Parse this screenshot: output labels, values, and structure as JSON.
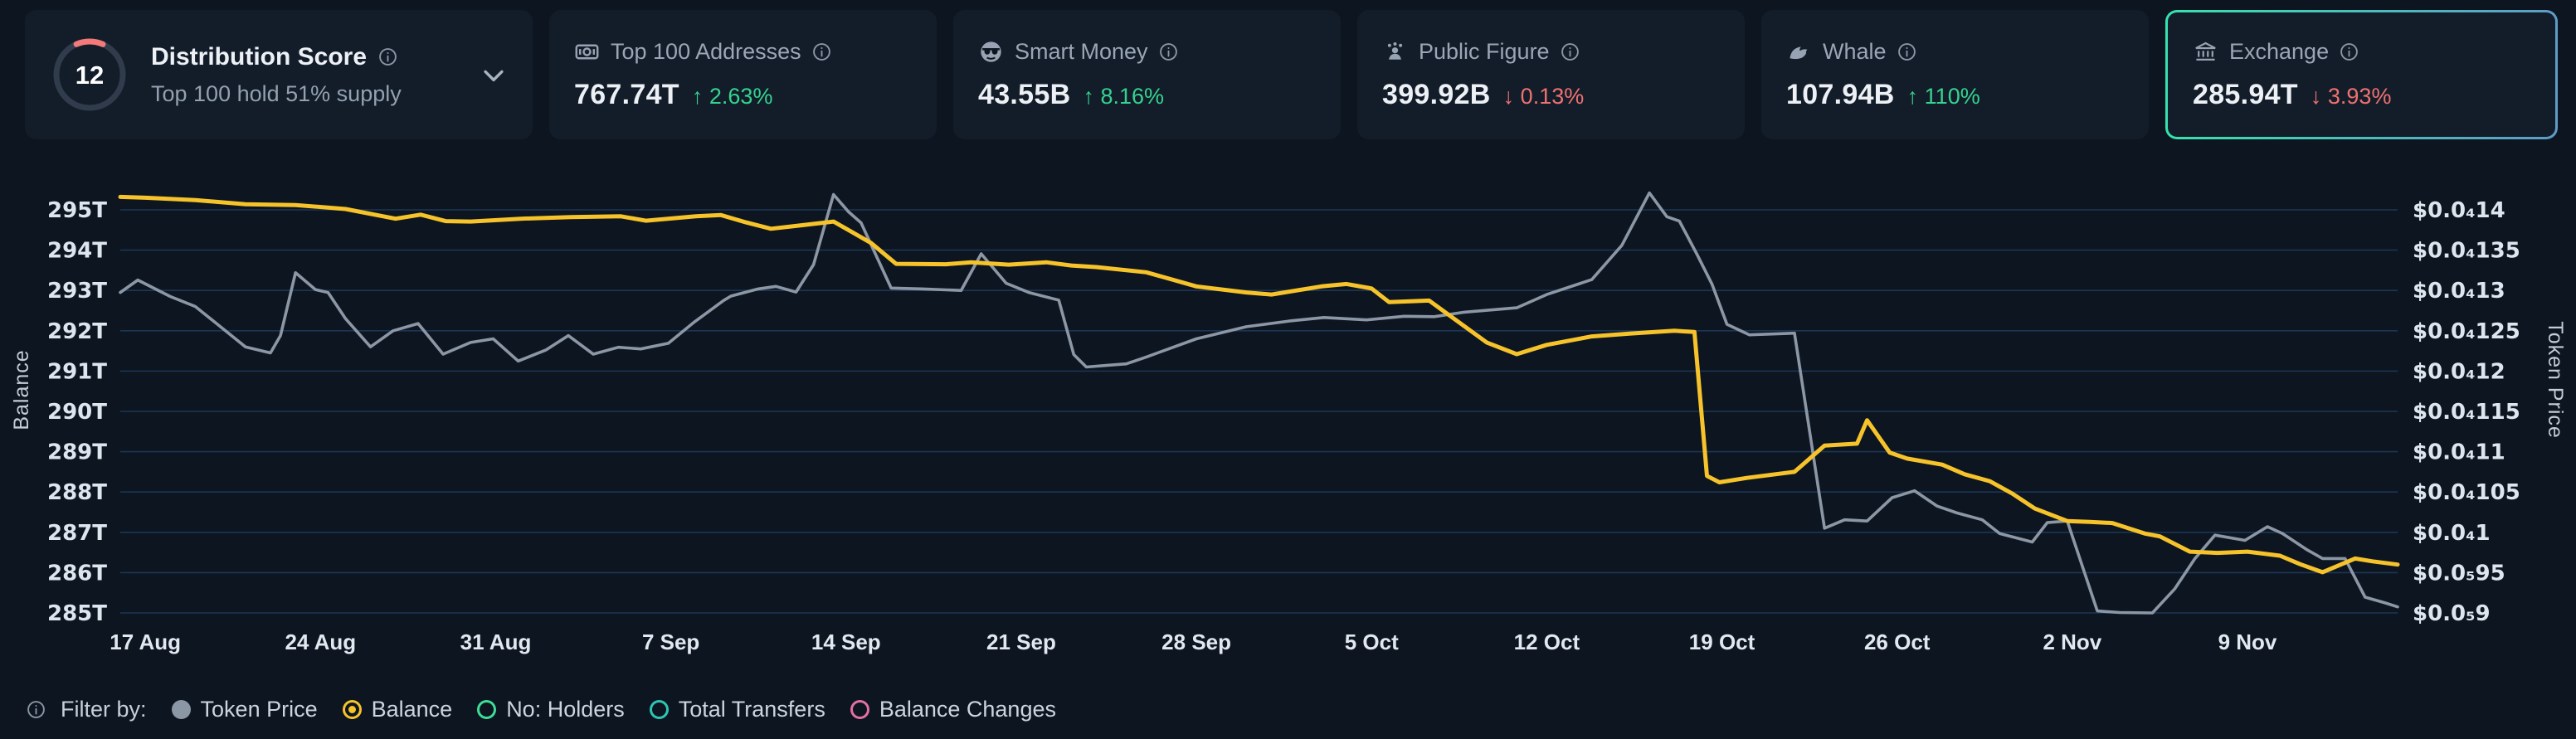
{
  "cards": {
    "distribution": {
      "score": "12",
      "score_max": 100,
      "title": "Distribution Score",
      "subtitle": "Top 100 hold 51% supply",
      "gauge_color": "#f47a7a",
      "gauge_track": "#303c4c"
    },
    "stats": [
      {
        "icon": "banknote-icon",
        "label": "Top 100 Addresses",
        "value": "767.74T",
        "change": "2.63%",
        "dir": "up"
      },
      {
        "icon": "smart-money-icon",
        "label": "Smart Money",
        "value": "43.55B",
        "change": "8.16%",
        "dir": "up"
      },
      {
        "icon": "public-figure-icon",
        "label": "Public Figure",
        "value": "399.92B",
        "change": "0.13%",
        "dir": "down"
      },
      {
        "icon": "whale-icon",
        "label": "Whale",
        "value": "107.94B",
        "change": "110%",
        "dir": "up"
      },
      {
        "icon": "exchange-icon",
        "label": "Exchange",
        "value": "285.94T",
        "change": "3.93%",
        "dir": "down",
        "selected": true
      }
    ]
  },
  "filter_bar": {
    "label": "Filter by:",
    "items": [
      {
        "name": "Token Price",
        "marker": "filled",
        "color": "#8c97a6"
      },
      {
        "name": "Balance",
        "marker": "radio",
        "color": "#f6c32b"
      },
      {
        "name": "No: Holders",
        "marker": "ring",
        "color": "#3ddc97"
      },
      {
        "name": "Total Transfers",
        "marker": "ring",
        "color": "#2cc7b2"
      },
      {
        "name": "Balance Changes",
        "marker": "ring",
        "color": "#e36fa4"
      }
    ]
  },
  "colors": {
    "up": "#35d38f",
    "down": "#ef7171",
    "grid": "#1e3c5e"
  },
  "chart_data": {
    "type": "line",
    "title": "",
    "grid": true,
    "legend_position": "bottom",
    "left_axis": {
      "title": "Balance",
      "unit": "T",
      "min": 285,
      "max": 295,
      "tick_values": [
        295,
        294,
        293,
        292,
        291,
        290,
        289,
        288,
        287,
        286,
        285
      ],
      "tick_labels": [
        "295T",
        "294T",
        "293T",
        "292T",
        "291T",
        "290T",
        "289T",
        "288T",
        "287T",
        "286T",
        "285T"
      ]
    },
    "right_axis": {
      "title": "Token Price",
      "unit": "$",
      "min": 9e-06,
      "max": 1.4e-05,
      "tick_labels": [
        "$0.0₄14",
        "$0.0₄135",
        "$0.0₄13",
        "$0.0₄125",
        "$0.0₄12",
        "$0.0₄115",
        "$0.0₄11",
        "$0.0₄105",
        "$0.0₄1",
        "$0.0₅95",
        "$0.0₅9"
      ]
    },
    "x_axis": {
      "unit": "day offset from 17 Aug",
      "ticks": [
        {
          "day": 0,
          "label": "17 Aug"
        },
        {
          "day": 7,
          "label": "24 Aug"
        },
        {
          "day": 14,
          "label": "31 Aug"
        },
        {
          "day": 21,
          "label": "7 Sep"
        },
        {
          "day": 28,
          "label": "14 Sep"
        },
        {
          "day": 35,
          "label": "21 Sep"
        },
        {
          "day": 42,
          "label": "28 Sep"
        },
        {
          "day": 49,
          "label": "5 Oct"
        },
        {
          "day": 56,
          "label": "12 Oct"
        },
        {
          "day": 63,
          "label": "19 Oct"
        },
        {
          "day": 70,
          "label": "26 Oct"
        },
        {
          "day": 77,
          "label": "2 Nov"
        },
        {
          "day": 84,
          "label": "9 Nov"
        }
      ]
    },
    "series": [
      {
        "name": "Balance",
        "axis": "left",
        "color": "#f6c32b",
        "width": 5,
        "unit": "T",
        "points": [
          [
            -1,
            295.32
          ],
          [
            0,
            295.3
          ],
          [
            2,
            295.24
          ],
          [
            4,
            295.14
          ],
          [
            6,
            295.12
          ],
          [
            8,
            295.02
          ],
          [
            10,
            294.78
          ],
          [
            11,
            294.88
          ],
          [
            12,
            294.72
          ],
          [
            13,
            294.71
          ],
          [
            15,
            294.78
          ],
          [
            17,
            294.82
          ],
          [
            19,
            294.84
          ],
          [
            20,
            294.73
          ],
          [
            22,
            294.84
          ],
          [
            23,
            294.87
          ],
          [
            24,
            294.69
          ],
          [
            25,
            294.53
          ],
          [
            26,
            294.6
          ],
          [
            27.5,
            294.71
          ],
          [
            29,
            294.18
          ],
          [
            30,
            293.66
          ],
          [
            32,
            293.65
          ],
          [
            33,
            293.7
          ],
          [
            34.5,
            293.64
          ],
          [
            36,
            293.7
          ],
          [
            37,
            293.62
          ],
          [
            38,
            293.58
          ],
          [
            40,
            293.45
          ],
          [
            42,
            293.1
          ],
          [
            44,
            292.95
          ],
          [
            45,
            292.9
          ],
          [
            47,
            293.1
          ],
          [
            48,
            293.16
          ],
          [
            49,
            293.05
          ],
          [
            49.7,
            292.71
          ],
          [
            51.3,
            292.75
          ],
          [
            53.6,
            291.71
          ],
          [
            54.8,
            291.42
          ],
          [
            56,
            291.65
          ],
          [
            57.8,
            291.86
          ],
          [
            59.3,
            291.93
          ],
          [
            61.1,
            292.0
          ],
          [
            61.9,
            291.97
          ],
          [
            62.4,
            288.4
          ],
          [
            62.9,
            288.24
          ],
          [
            64,
            288.35
          ],
          [
            65.9,
            288.5
          ],
          [
            67.1,
            289.15
          ],
          [
            68.4,
            289.2
          ],
          [
            68.8,
            289.78
          ],
          [
            69.7,
            288.98
          ],
          [
            70.4,
            288.83
          ],
          [
            71.8,
            288.68
          ],
          [
            72.7,
            288.44
          ],
          [
            73.7,
            288.27
          ],
          [
            74.6,
            287.96
          ],
          [
            75.5,
            287.59
          ],
          [
            76.8,
            287.28
          ],
          [
            77.7,
            287.26
          ],
          [
            78.6,
            287.23
          ],
          [
            79.9,
            286.97
          ],
          [
            80.5,
            286.9
          ],
          [
            81.7,
            286.52
          ],
          [
            82.8,
            286.49
          ],
          [
            84,
            286.52
          ],
          [
            85.3,
            286.42
          ],
          [
            86.1,
            286.21
          ],
          [
            87,
            286.01
          ],
          [
            88.3,
            286.35
          ],
          [
            89,
            286.28
          ],
          [
            90,
            286.2
          ]
        ]
      },
      {
        "name": "Token Price",
        "axis": "right",
        "color": "#8c97a6",
        "width": 3.6,
        "unit": "$",
        "points": [
          [
            -1,
            1.2975e-05
          ],
          [
            -0.3,
            1.313e-05
          ],
          [
            1,
            1.2925e-05
          ],
          [
            2,
            1.28e-05
          ],
          [
            3,
            1.255e-05
          ],
          [
            4,
            1.23e-05
          ],
          [
            5,
            1.2225e-05
          ],
          [
            5.4,
            1.244e-05
          ],
          [
            6,
            1.322e-05
          ],
          [
            6.8,
            1.301e-05
          ],
          [
            7.3,
            1.2975e-05
          ],
          [
            8,
            1.265e-05
          ],
          [
            9,
            1.23e-05
          ],
          [
            9.9,
            1.25e-05
          ],
          [
            10.9,
            1.259e-05
          ],
          [
            11.9,
            1.221e-05
          ],
          [
            13,
            1.2355e-05
          ],
          [
            13.9,
            1.24e-05
          ],
          [
            14.9,
            1.2125e-05
          ],
          [
            16,
            1.226e-05
          ],
          [
            16.9,
            1.244e-05
          ],
          [
            17.9,
            1.221e-05
          ],
          [
            18.9,
            1.2295e-05
          ],
          [
            19.8,
            1.2275e-05
          ],
          [
            20.9,
            1.2345e-05
          ],
          [
            21.9,
            1.26e-05
          ],
          [
            23.1,
            1.2875e-05
          ],
          [
            23.4,
            1.293e-05
          ],
          [
            24.5,
            1.302e-05
          ],
          [
            25.2,
            1.305e-05
          ],
          [
            26,
            1.298e-05
          ],
          [
            26.7,
            1.332e-05
          ],
          [
            27.5,
            1.419e-05
          ],
          [
            28.1,
            1.3975e-05
          ],
          [
            28.6,
            1.384e-05
          ],
          [
            29.8,
            1.303e-05
          ],
          [
            31,
            1.302e-05
          ],
          [
            32.6,
            1.3e-05
          ],
          [
            33.4,
            1.3455e-05
          ],
          [
            34.4,
            1.309e-05
          ],
          [
            35.3,
            1.2975e-05
          ],
          [
            36.5,
            1.288e-05
          ],
          [
            37.1,
            1.2205e-05
          ],
          [
            37.6,
            1.205e-05
          ],
          [
            38.4,
            1.207e-05
          ],
          [
            39.2,
            1.209e-05
          ],
          [
            40,
            1.2175e-05
          ],
          [
            42,
            1.24e-05
          ],
          [
            44,
            1.255e-05
          ],
          [
            45.7,
            1.262e-05
          ],
          [
            47.1,
            1.2665e-05
          ],
          [
            48.8,
            1.2635e-05
          ],
          [
            50.3,
            1.268e-05
          ],
          [
            51.5,
            1.2675e-05
          ],
          [
            52.7,
            1.273e-05
          ],
          [
            54.8,
            1.2785e-05
          ],
          [
            56,
            1.295e-05
          ],
          [
            57.8,
            1.3135e-05
          ],
          [
            59,
            1.356e-05
          ],
          [
            60.1,
            1.421e-05
          ],
          [
            60.8,
            1.3915e-05
          ],
          [
            61.3,
            1.386e-05
          ],
          [
            62,
            1.345e-05
          ],
          [
            62.6,
            1.308e-05
          ],
          [
            63.2,
            1.258e-05
          ],
          [
            64.1,
            1.245e-05
          ],
          [
            65.9,
            1.247e-05
          ],
          [
            67.1,
            1.005e-05
          ],
          [
            67.9,
            1.0155e-05
          ],
          [
            68.8,
            1.014e-05
          ],
          [
            69.8,
            1.043e-05
          ],
          [
            70.7,
            1.0515e-05
          ],
          [
            71.6,
            1.0325e-05
          ],
          [
            72.4,
            1.024e-05
          ],
          [
            73.4,
            1.0155e-05
          ],
          [
            74.1,
            9.985e-06
          ],
          [
            75.4,
            9.88e-06
          ],
          [
            76,
            1.012e-05
          ],
          [
            76.8,
            1.014e-05
          ],
          [
            78,
            9.025e-06
          ],
          [
            78.9,
            9.005e-06
          ],
          [
            80.2,
            9e-06
          ],
          [
            81.1,
            9.3e-06
          ],
          [
            81.9,
            9.675e-06
          ],
          [
            82.7,
            9.965e-06
          ],
          [
            83.9,
            9.9e-06
          ],
          [
            84.8,
            1.007e-05
          ],
          [
            85.4,
            9.985e-06
          ],
          [
            86.4,
            9.78e-06
          ],
          [
            87,
            9.675e-06
          ],
          [
            87.9,
            9.675e-06
          ],
          [
            88.7,
            9.195e-06
          ],
          [
            89.5,
            9.125e-06
          ],
          [
            90,
            9.075e-06
          ]
        ]
      }
    ],
    "layout": {
      "plot": {
        "x1": 145,
        "x2": 2890,
        "day_min": -1,
        "day_max": 90,
        "y_top": 205,
        "y_bottom": 760,
        "y_max_tick": 253,
        "y_min_tick": 739
      },
      "x_label_y": 783,
      "left_title_pos": {
        "x": 34,
        "y": 470
      },
      "right_title_pos": {
        "x": 3072,
        "y": 458
      }
    }
  }
}
